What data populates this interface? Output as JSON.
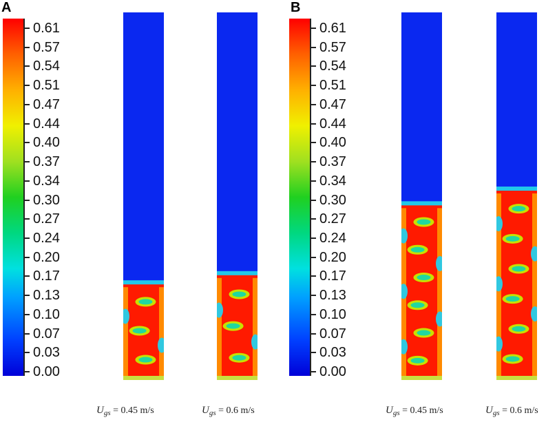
{
  "panels": [
    {
      "letter": "A",
      "columns": [
        {
          "bed_height_fraction": 0.26,
          "caption": {
            "symbol": "U",
            "subscript": "gs",
            "value": "= 0.45 m/s"
          }
        },
        {
          "bed_height_fraction": 0.285,
          "caption": {
            "symbol": "U",
            "subscript": "gs",
            "value": "= 0.6 m/s"
          }
        }
      ]
    },
    {
      "letter": "B",
      "columns": [
        {
          "bed_height_fraction": 0.475,
          "caption": {
            "symbol": "U",
            "subscript": "gs",
            "value": "= 0.45 m/s"
          }
        },
        {
          "bed_height_fraction": 0.515,
          "caption": {
            "symbol": "U",
            "subscript": "gs",
            "value": "= 0.6 m/s"
          }
        }
      ]
    }
  ],
  "colorbar": {
    "ticks": [
      "0.61",
      "0.57",
      "0.54",
      "0.51",
      "0.47",
      "0.44",
      "0.40",
      "0.37",
      "0.34",
      "0.30",
      "0.27",
      "0.24",
      "0.20",
      "0.17",
      "0.13",
      "0.10",
      "0.07",
      "0.03",
      "0.00"
    ],
    "colors": {
      "low": "#0000d8",
      "high": "#ff0000"
    }
  }
}
